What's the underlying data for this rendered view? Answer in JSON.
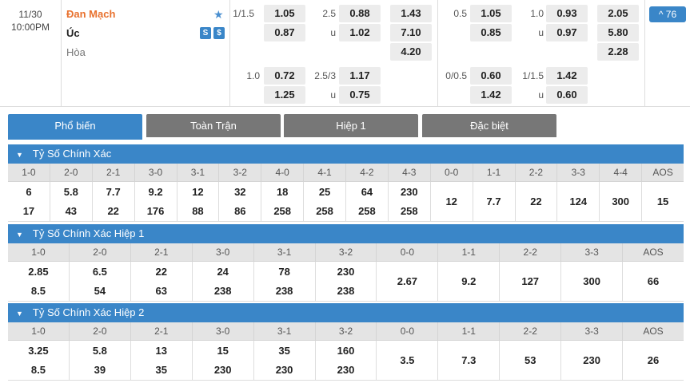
{
  "match": {
    "date": "11/30",
    "time": "10:00PM",
    "home": "Đan Mạch",
    "away": "Úc",
    "draw": "Hòa",
    "icon_a": "S",
    "icon_b": "$",
    "more": "^ 76",
    "ft": {
      "hdp1": {
        "line": "1/1.5",
        "home": "1.05",
        "away": "0.87"
      },
      "ou1": {
        "line": "2.5",
        "line2": "u",
        "over": "0.88",
        "under": "1.02"
      },
      "x12": {
        "home": "1.43",
        "away": "7.10",
        "draw": "4.20"
      },
      "hdp2": {
        "line": "1.0",
        "home": "0.72",
        "away": "1.25"
      },
      "ou2": {
        "line": "2.5/3",
        "line2": "u",
        "over": "1.17",
        "under": "0.75"
      }
    },
    "ht": {
      "hdp1": {
        "line": "0.5",
        "home": "1.05",
        "away": "0.85"
      },
      "ou1": {
        "line": "1.0",
        "line2": "u",
        "over": "0.93",
        "under": "0.97"
      },
      "x12": {
        "home": "2.05",
        "away": "5.80",
        "draw": "2.28"
      },
      "hdp2": {
        "line": "0/0.5",
        "home": "0.60",
        "away": "1.42"
      },
      "ou2": {
        "line": "1/1.5",
        "line2": "u",
        "over": "1.42",
        "under": "0.60"
      }
    }
  },
  "tabs": [
    "Phổ biến",
    "Toàn Trận",
    "Hiệp 1",
    "Đặc biệt"
  ],
  "sections": [
    {
      "title": "Tỷ Số Chính Xác",
      "headers": [
        "1-0",
        "2-0",
        "2-1",
        "3-0",
        "3-1",
        "3-2",
        "4-0",
        "4-1",
        "4-2",
        "4-3",
        "0-0",
        "1-1",
        "2-2",
        "3-3",
        "4-4",
        "AOS"
      ],
      "v1": [
        "6",
        "5.8",
        "7.7",
        "9.2",
        "12",
        "32",
        "18",
        "25",
        "64",
        "230",
        "",
        "",
        "",
        "",
        "",
        ""
      ],
      "v2": [
        "17",
        "43",
        "22",
        "176",
        "88",
        "86",
        "258",
        "258",
        "258",
        "258",
        "",
        "",
        "",
        "",
        "",
        ""
      ],
      "vc": [
        "",
        "",
        "",
        "",
        "",
        "",
        "",
        "",
        "",
        "",
        "12",
        "7.7",
        "22",
        "124",
        "300",
        "15"
      ]
    },
    {
      "title": "Tỷ Số Chính Xác Hiệp 1",
      "headers": [
        "1-0",
        "2-0",
        "2-1",
        "3-0",
        "3-1",
        "3-2",
        "0-0",
        "1-1",
        "2-2",
        "3-3",
        "AOS"
      ],
      "v1": [
        "2.85",
        "6.5",
        "22",
        "24",
        "78",
        "230",
        "",
        "",
        "",
        "",
        ""
      ],
      "v2": [
        "8.5",
        "54",
        "63",
        "238",
        "238",
        "238",
        "",
        "",
        "",
        "",
        ""
      ],
      "vc": [
        "",
        "",
        "",
        "",
        "",
        "",
        "2.67",
        "9.2",
        "127",
        "300",
        "66"
      ]
    },
    {
      "title": "Tỷ Số Chính Xác Hiệp 2",
      "headers": [
        "1-0",
        "2-0",
        "2-1",
        "3-0",
        "3-1",
        "3-2",
        "0-0",
        "1-1",
        "2-2",
        "3-3",
        "AOS"
      ],
      "v1": [
        "3.25",
        "5.8",
        "13",
        "15",
        "35",
        "160",
        "",
        "",
        "",
        "",
        ""
      ],
      "v2": [
        "8.5",
        "39",
        "35",
        "230",
        "230",
        "230",
        "",
        "",
        "",
        "",
        ""
      ],
      "vc": [
        "",
        "",
        "",
        "",
        "",
        "",
        "3.5",
        "7.3",
        "53",
        "230",
        "26"
      ]
    }
  ]
}
